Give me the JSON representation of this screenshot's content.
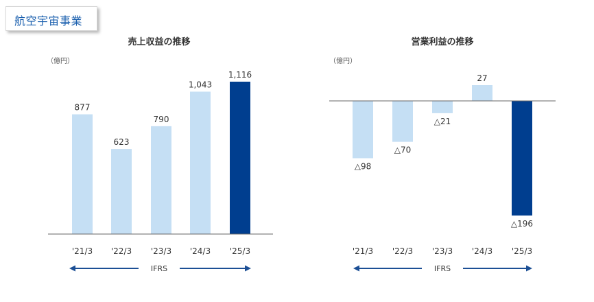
{
  "section_tag": "航空宇宙事業",
  "chart_data": [
    {
      "type": "bar",
      "title": "売上収益の推移",
      "unit": "（億円）",
      "categories": [
        "'21/3",
        "'22/3",
        "'23/3",
        "'24/3",
        "'25/3"
      ],
      "values": [
        877,
        623,
        790,
        1043,
        1116
      ],
      "value_labels": [
        "877",
        "623",
        "790",
        "1,043",
        "1,116"
      ],
      "highlight_index": 4,
      "ylim": [
        0,
        1116
      ],
      "range_label": "IFRS"
    },
    {
      "type": "bar",
      "title": "営業利益の推移",
      "unit": "（億円）",
      "categories": [
        "'21/3",
        "'22/3",
        "'23/3",
        "'24/3",
        "'25/3"
      ],
      "values": [
        -98,
        -70,
        -21,
        27,
        -196
      ],
      "value_labels": [
        "△98",
        "△70",
        "△21",
        "27",
        "△196"
      ],
      "highlight_index": 4,
      "ylim": [
        -196,
        27
      ],
      "range_label": "IFRS"
    }
  ],
  "colors": {
    "light_bar": "#c5dff4",
    "dark_bar": "#003e8f",
    "arrow": "#1c4f95",
    "axis": "#666666"
  }
}
